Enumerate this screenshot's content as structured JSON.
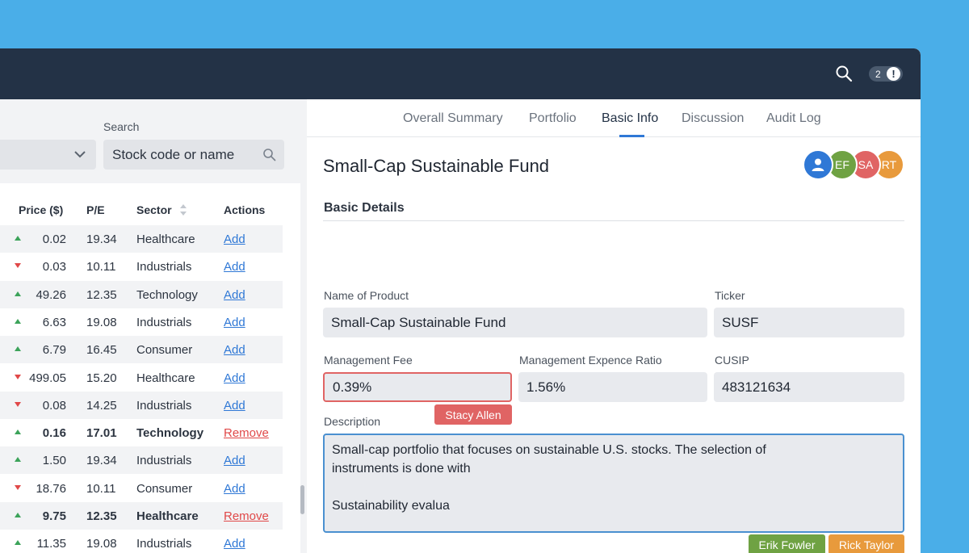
{
  "topbar": {
    "notification_count": "2",
    "notification_symbol": "!",
    "icons": [
      "search-icon",
      "alert-icon"
    ]
  },
  "left": {
    "search_label": "Search",
    "search_placeholder": "Stock code or name",
    "columns": [
      "Price ($)",
      "P/E",
      "Sector",
      "Actions"
    ],
    "rows": [
      {
        "trend": "up",
        "price": "0.02",
        "pe": "19.34",
        "sector": "Healthcare",
        "action": "Add",
        "bold": false
      },
      {
        "trend": "down",
        "price": "0.03",
        "pe": "10.11",
        "sector": "Industrials",
        "action": "Add",
        "bold": false
      },
      {
        "trend": "up",
        "price": "49.26",
        "pe": "12.35",
        "sector": "Technology",
        "action": "Add",
        "bold": false
      },
      {
        "trend": "up",
        "price": "6.63",
        "pe": "19.08",
        "sector": "Industrials",
        "action": "Add",
        "bold": false
      },
      {
        "trend": "up",
        "price": "6.79",
        "pe": "16.45",
        "sector": "Consumer",
        "action": "Add",
        "bold": false
      },
      {
        "trend": "down",
        "price": "499.05",
        "pe": "15.20",
        "sector": "Healthcare",
        "action": "Add",
        "bold": false
      },
      {
        "trend": "down",
        "price": "0.08",
        "pe": "14.25",
        "sector": "Industrials",
        "action": "Add",
        "bold": false
      },
      {
        "trend": "up",
        "price": "0.16",
        "pe": "17.01",
        "sector": "Technology",
        "action": "Remove",
        "bold": true
      },
      {
        "trend": "up",
        "price": "1.50",
        "pe": "19.34",
        "sector": "Industrials",
        "action": "Add",
        "bold": false
      },
      {
        "trend": "down",
        "price": "18.76",
        "pe": "10.11",
        "sector": "Consumer",
        "action": "Add",
        "bold": false
      },
      {
        "trend": "up",
        "price": "9.75",
        "pe": "12.35",
        "sector": "Healthcare",
        "action": "Remove",
        "bold": true
      },
      {
        "trend": "up",
        "price": "11.35",
        "pe": "19.08",
        "sector": "Industrials",
        "action": "Add",
        "bold": false
      }
    ]
  },
  "tabs": [
    "Overall Summary",
    "Portfolio",
    "Basic Info",
    "Discussion",
    "Audit Log"
  ],
  "active_tab": "Basic Info",
  "fund": {
    "title": "Small-Cap Sustainable Fund",
    "avatars": [
      {
        "initials": "",
        "color": "#2f78d6",
        "icon": "user-icon"
      },
      {
        "initials": "EF",
        "color": "#6fa243"
      },
      {
        "initials": "SA",
        "color": "#e06464"
      },
      {
        "initials": "RT",
        "color": "#e89a3c"
      }
    ],
    "section": "Basic Details",
    "fields": {
      "name_label": "Name of Product",
      "name_value": "Small-Cap Sustainable Fund",
      "ticker_label": "Ticker",
      "ticker_value": "SUSF",
      "fee_label": "Management Fee",
      "fee_value": "0.39%",
      "fee_editor": "Stacy Allen",
      "ratio_label": "Management Expence Ratio",
      "ratio_value": "1.56%",
      "cusip_label": "CUSIP",
      "cusip_value": "483121634",
      "desc_label": "Description",
      "desc_value": "Small-cap portfolio that focuses on sustainable U.S. stocks. The selection of\ninstruments is done with\n\nSustainability evalua",
      "desc_editors": [
        "Erik Fowler",
        "Rick Taylor"
      ]
    },
    "colors": {
      "stacy": "#e06464",
      "erik": "#6fa243",
      "rick": "#e89a3c"
    }
  }
}
